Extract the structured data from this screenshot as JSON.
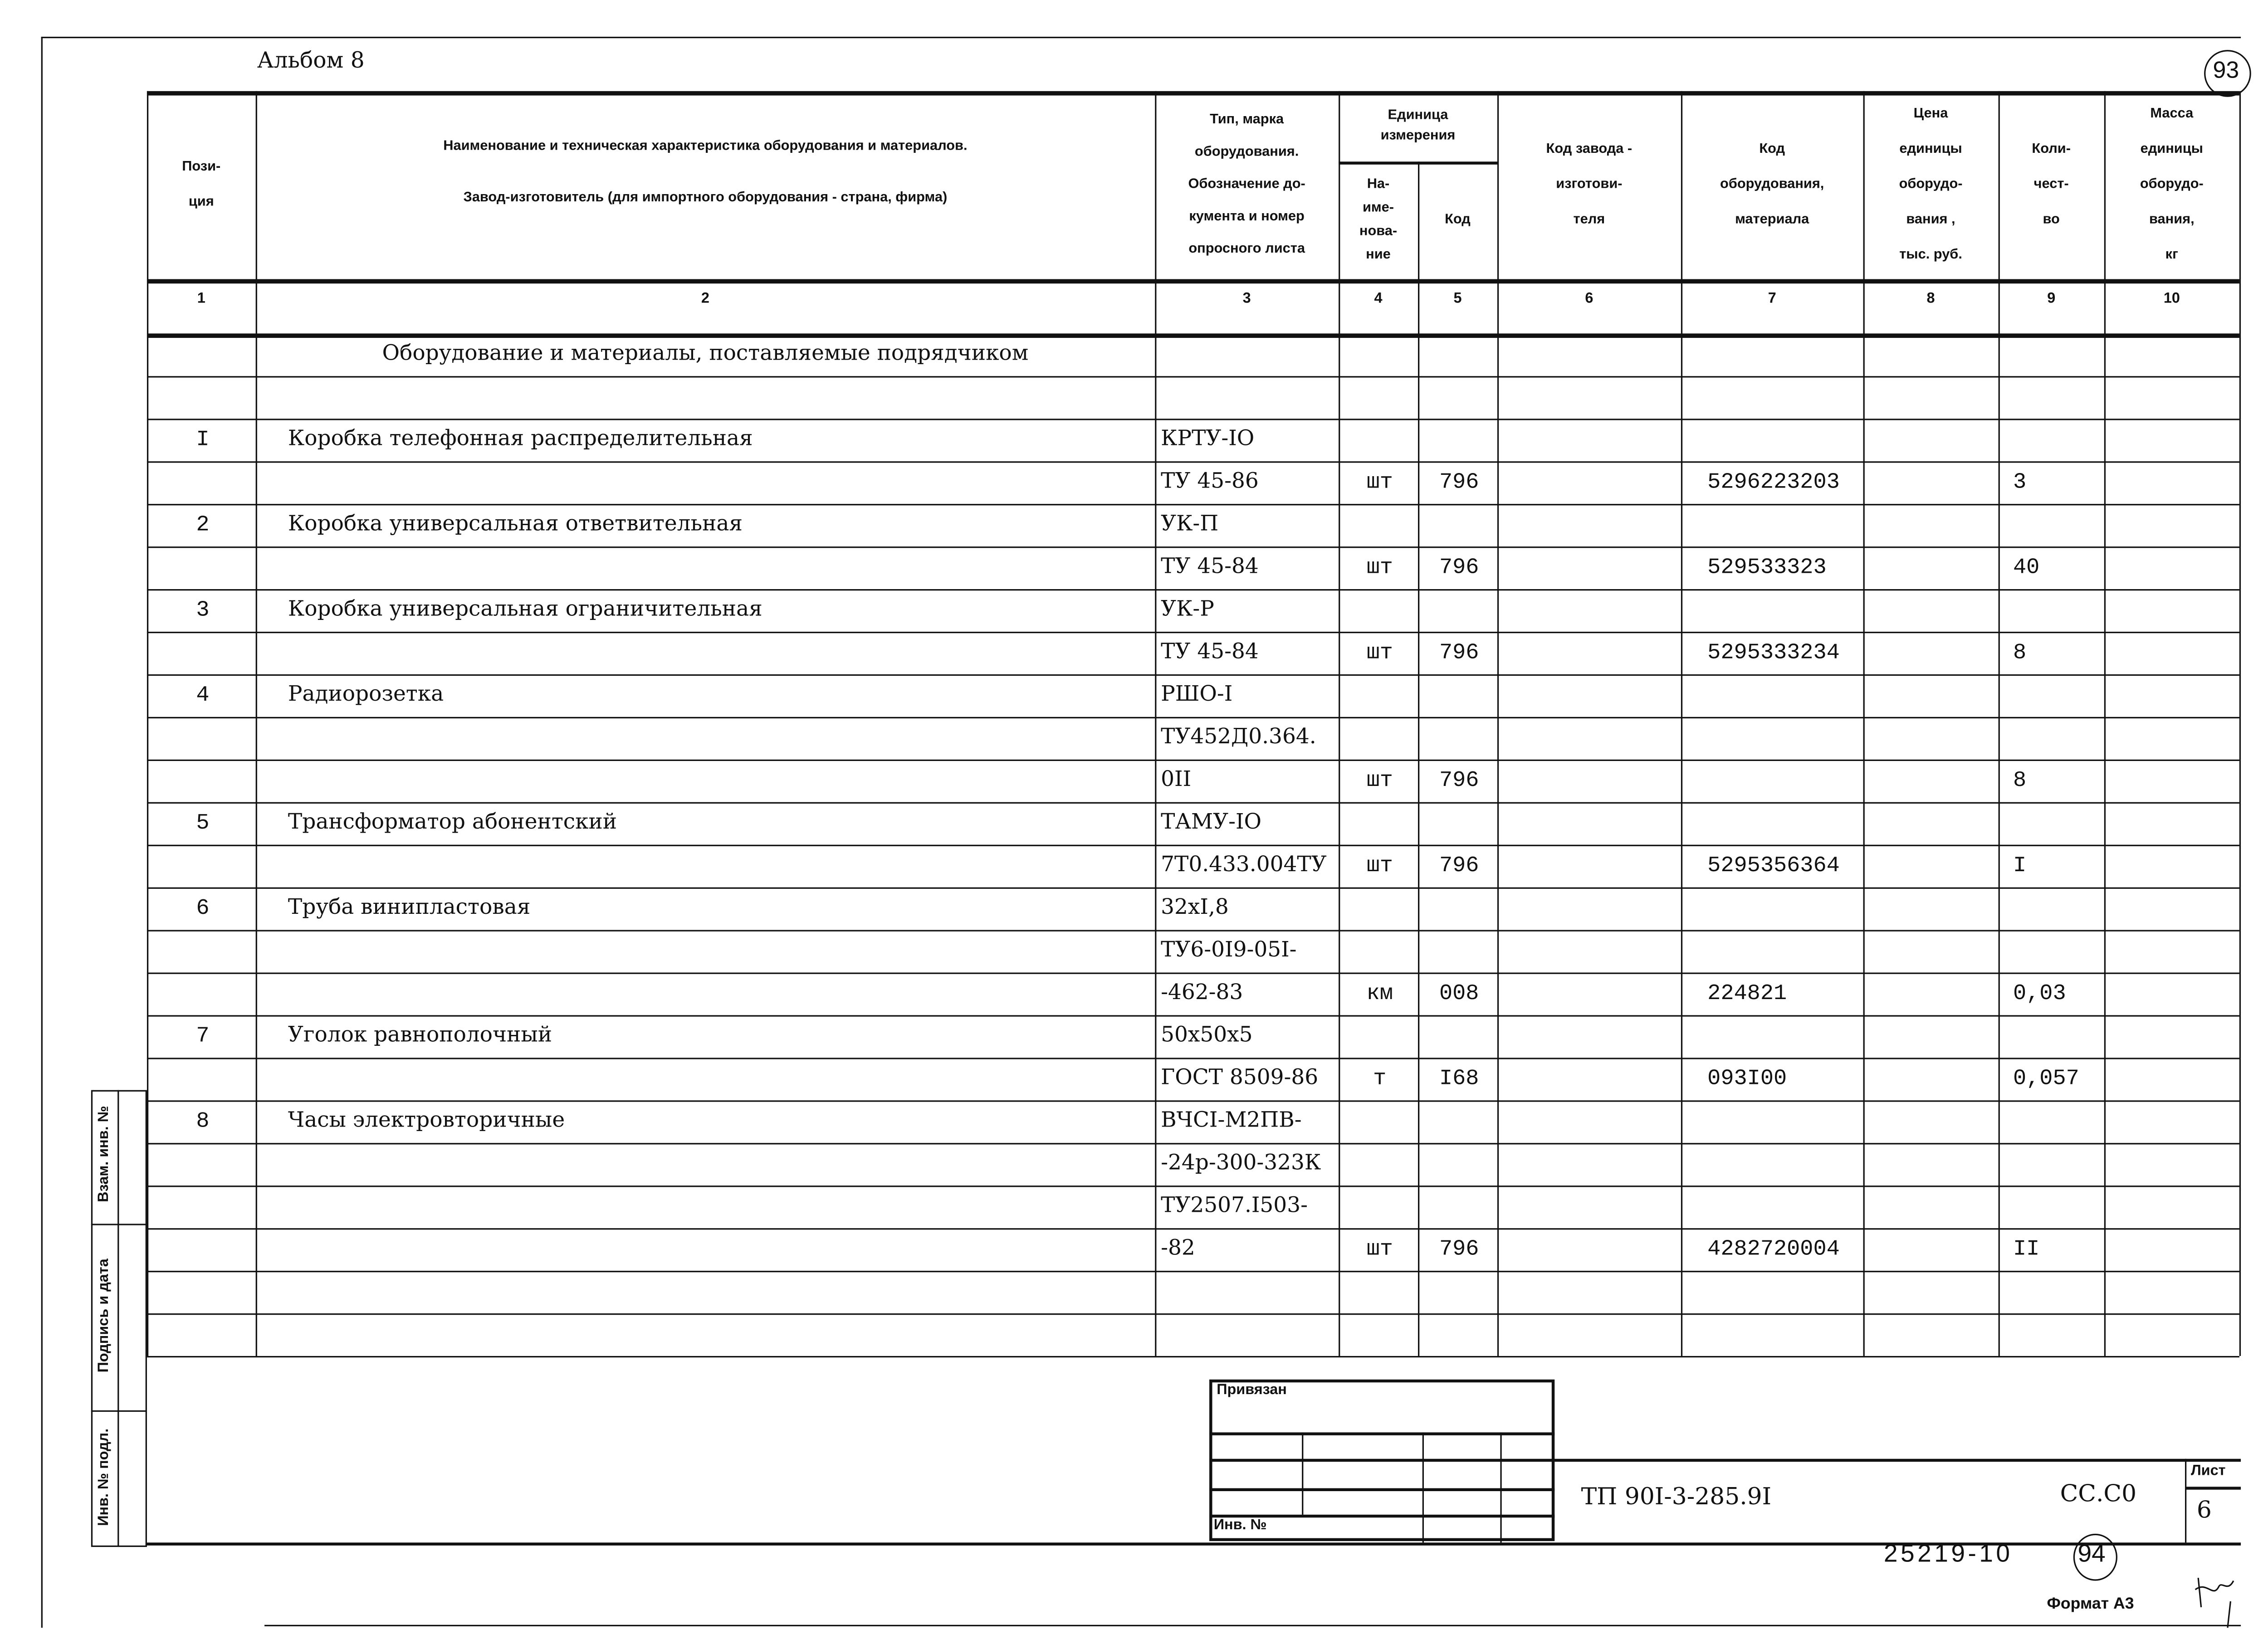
{
  "header": {
    "album": "Альбом 8",
    "page_mark": "93"
  },
  "columns": {
    "c1": "Пози-\nция",
    "c2a": "Наименование и техническая характеристика  оборудования и материалов.",
    "c2b": "Завод-изготовитель  (для импортного оборудования -  страна, фирма)",
    "c3": "Тип,      марка\nоборудования.\nОбозначение  до-\nкумента  и  номер\nопросного листа",
    "c45": "Единица\nизмерения",
    "c4": "На-\nиме-\nнова-\nние",
    "c5": "Код",
    "c6": "Код  завода -\nизготови-\nтеля",
    "c7": "Код\nоборудования,\nматериала",
    "c8": "Цена\nединицы\nоборудо-\nвания ,\nтыс. руб.",
    "c9": "Коли-\nчест-\nво",
    "c10": "Масса\nединицы\nоборудо-\nвания,\nкг",
    "numbers": [
      "1",
      "2",
      "3",
      "4",
      "5",
      "6",
      "7",
      "8",
      "9",
      "10"
    ]
  },
  "rows": [
    [
      "",
      "Оборудование и материалы, поставляемые подрядчиком",
      "",
      "",
      "",
      "",
      "",
      "",
      "",
      ""
    ],
    [
      "",
      "",
      "",
      "",
      "",
      "",
      "",
      "",
      "",
      ""
    ],
    [
      "I",
      "Коробка телефонная распределительная",
      "КРТУ-IO",
      "",
      "",
      "",
      "",
      "",
      "",
      ""
    ],
    [
      "",
      "",
      "ТУ 45-86",
      "шт",
      "796",
      "",
      "5296223203",
      "",
      "3",
      ""
    ],
    [
      "2",
      "Коробка универсальная ответвительная",
      "УК-П",
      "",
      "",
      "",
      "",
      "",
      "",
      ""
    ],
    [
      "",
      "",
      "ТУ 45-84",
      "шт",
      "796",
      "",
      "529533323",
      "",
      "40",
      ""
    ],
    [
      "3",
      "Коробка универсальная ограничительная",
      "УК-Р",
      "",
      "",
      "",
      "",
      "",
      "",
      ""
    ],
    [
      "",
      "",
      "ТУ 45-84",
      "шт",
      "796",
      "",
      "5295333234",
      "",
      "8",
      ""
    ],
    [
      "4",
      "Радиорозетка",
      "РШО-I",
      "",
      "",
      "",
      "",
      "",
      "",
      ""
    ],
    [
      "",
      "",
      "ТУ452Д0.364.",
      "",
      "",
      "",
      "",
      "",
      "",
      ""
    ],
    [
      "",
      "",
      "0II",
      "шт",
      "796",
      "",
      "",
      "",
      "8",
      ""
    ],
    [
      "5",
      "Трансформатор абонентский",
      "ТАМУ-IO",
      "",
      "",
      "",
      "",
      "",
      "",
      ""
    ],
    [
      "",
      "",
      "7Т0.433.004ТУ",
      "шт",
      "796",
      "",
      "5295356364",
      "",
      "I",
      ""
    ],
    [
      "6",
      "Труба винипластовая",
      "32хI,8",
      "",
      "",
      "",
      "",
      "",
      "",
      ""
    ],
    [
      "",
      "",
      "ТУ6-0I9-05I-",
      "",
      "",
      "",
      "",
      "",
      "",
      ""
    ],
    [
      "",
      "",
      "-462-83",
      "км",
      "008",
      "",
      "224821",
      "",
      "0,03",
      ""
    ],
    [
      "7",
      "Уголок равнополочный",
      "50х50х5",
      "",
      "",
      "",
      "",
      "",
      "",
      ""
    ],
    [
      "",
      "",
      "ГОСТ 8509-86",
      "т",
      "I68",
      "",
      "093I00",
      "",
      "0,057",
      ""
    ],
    [
      "8",
      "Часы электровторичные",
      "ВЧСI-М2ПВ-",
      "",
      "",
      "",
      "",
      "",
      "",
      ""
    ],
    [
      "",
      "",
      "-24р-300-323К",
      "",
      "",
      "",
      "",
      "",
      "",
      ""
    ],
    [
      "",
      "",
      "ТУ2507.I503-",
      "",
      "",
      "",
      "",
      "",
      "",
      ""
    ],
    [
      "",
      "",
      "-82",
      "шт",
      "796",
      "",
      "4282720004",
      "",
      "II",
      ""
    ],
    [
      "",
      "",
      "",
      "",
      "",
      "",
      "",
      "",
      "",
      ""
    ],
    [
      "",
      "",
      "",
      "",
      "",
      "",
      "",
      "",
      "",
      ""
    ]
  ],
  "side_stamp": {
    "replaced_inv": "Взам. инв. №",
    "signature_date": "Подпись и дата",
    "inv_original": "Инв. № подл."
  },
  "title_block": {
    "linked": "Привязан",
    "inv_no": "Инв. №",
    "doc_code": "ТП  90I-3-285.9I",
    "section": "СС.С0",
    "sheet_label": "Лист",
    "sheet": "6",
    "archive_no": "25219-10",
    "page_mark": "94",
    "format": "Формат А3"
  }
}
